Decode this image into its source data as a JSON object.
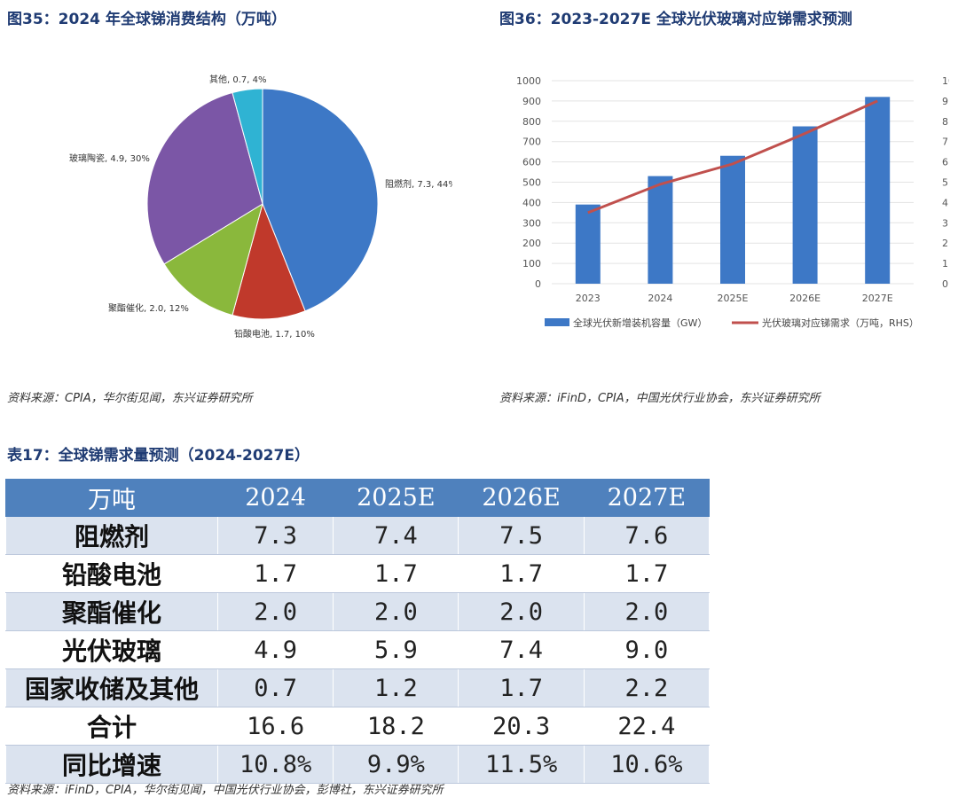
{
  "fig35": {
    "title": "图35：2024 年全球锑消费结构（万吨）",
    "source": "资料来源：CPIA，华尔街见闻，东兴证券研究所"
  },
  "fig36": {
    "title": "图36：2023-2027E 全球光伏玻璃对应锑需求预测",
    "source": "资料来源：iFinD，CPIA，中国光伏行业协会，东兴证券研究所"
  },
  "table17": {
    "title": "表17：全球锑需求量预测（2024-2027E）",
    "source": "资料来源：iFinD，CPIA，华尔街见闻，中国光伏行业协会，彭博社，东兴证券研究所",
    "headers": [
      "万吨",
      "2024",
      "2025E",
      "2026E",
      "2027E"
    ],
    "rows": [
      [
        "阻燃剂",
        "7.3",
        "7.4",
        "7.5",
        "7.6"
      ],
      [
        "铅酸电池",
        "1.7",
        "1.7",
        "1.7",
        "1.7"
      ],
      [
        "聚酯催化",
        "2.0",
        "2.0",
        "2.0",
        "2.0"
      ],
      [
        "光伏玻璃",
        "4.9",
        "5.9",
        "7.4",
        "9.0"
      ],
      [
        "国家收储及其他",
        "0.7",
        "1.2",
        "1.7",
        "2.2"
      ],
      [
        "合计",
        "16.6",
        "18.2",
        "20.3",
        "22.4"
      ],
      [
        "同比增速",
        "10.8%",
        "9.9%",
        "11.5%",
        "10.6%"
      ]
    ],
    "header_color": "#4f81bd",
    "stripe_color": "#dbe3ef"
  },
  "chart_data": [
    {
      "type": "pie",
      "slices": [
        {
          "label": "阻燃剂, 7.3, 44%",
          "value": 7.3,
          "percent": 44,
          "color": "#3d78c6"
        },
        {
          "label": "铅酸电池, 1.7, 10%",
          "value": 1.7,
          "percent": 10,
          "color": "#c0392b"
        },
        {
          "label": "聚酯催化, 2.0, 12%",
          "value": 2.0,
          "percent": 12,
          "color": "#8ab83c"
        },
        {
          "label": "玻璃陶瓷, 4.9, 30%",
          "value": 4.9,
          "percent": 30,
          "color": "#7b56a6"
        },
        {
          "label": "其他, 0.7, 4%",
          "value": 0.7,
          "percent": 4,
          "color": "#2fb3d3"
        }
      ]
    },
    {
      "type": "bar",
      "categories": [
        "2023",
        "2024",
        "2025E",
        "2026E",
        "2027E"
      ],
      "series": [
        {
          "name": "全球光伏新增装机容量（GW）",
          "type": "bar",
          "axis": "left",
          "values": [
            390,
            530,
            630,
            775,
            920
          ],
          "color": "#3d78c6"
        },
        {
          "name": "光伏玻璃对应锑需求（万吨，RHS）",
          "type": "line",
          "axis": "right",
          "values": [
            3.5,
            4.9,
            5.9,
            7.4,
            9.0
          ],
          "color": "#c0504d"
        }
      ],
      "ylim_left": [
        0,
        1000
      ],
      "yticks_left": [
        "0",
        "100",
        "200",
        "300",
        "400",
        "500",
        "600",
        "700",
        "800",
        "900",
        "1000"
      ],
      "ylim_right": [
        0,
        10
      ],
      "yticks_right": [
        "0",
        "1",
        "2",
        "3",
        "4",
        "5",
        "6",
        "7",
        "8",
        "9",
        "10"
      ],
      "grid": true,
      "legend_position": "bottom"
    }
  ]
}
